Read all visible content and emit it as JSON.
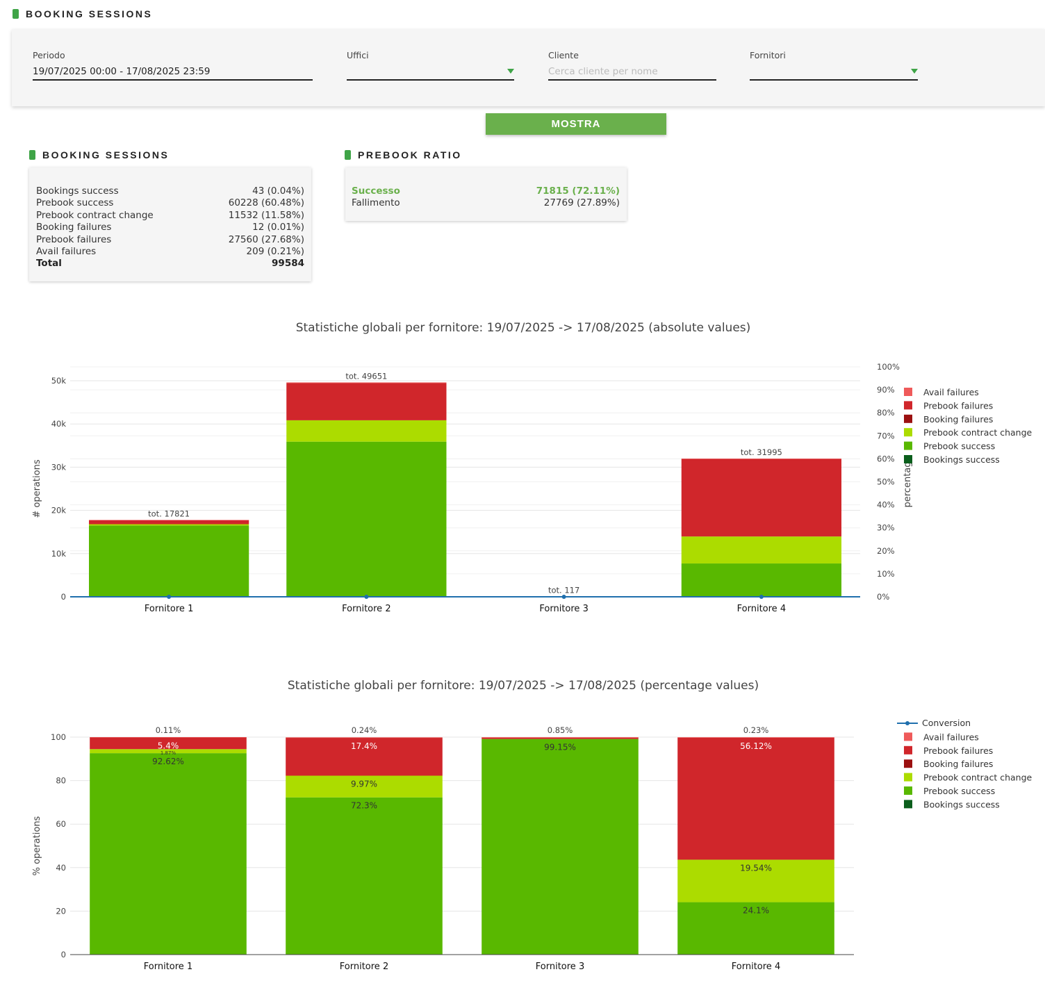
{
  "page": {
    "title": "BOOKING SESSIONS"
  },
  "filters": {
    "periodo_label": "Periodo",
    "periodo_value": "19/07/2025 00:00 - 17/08/2025 23:59",
    "uffici_label": "Uffici",
    "uffici_value": "",
    "cliente_label": "Cliente",
    "cliente_placeholder": "Cerca cliente per nome",
    "fornitori_label": "Fornitori",
    "fornitori_value": ""
  },
  "show_button": "MOSTRA",
  "booking_sessions": {
    "title": "BOOKING SESSIONS",
    "rows": [
      {
        "label": "Bookings success",
        "value": "43 (0.04%)"
      },
      {
        "label": "Prebook success",
        "value": "60228 (60.48%)"
      },
      {
        "label": "Prebook contract change",
        "value": "11532 (11.58%)"
      },
      {
        "label": "Booking failures",
        "value": "12 (0.01%)"
      },
      {
        "label": "Prebook failures",
        "value": "27560 (27.68%)"
      },
      {
        "label": "Avail failures",
        "value": "209 (0.21%)"
      }
    ],
    "total_label": "Total",
    "total_value": "99584"
  },
  "prebook_ratio": {
    "title": "PREBOOK RATIO",
    "success_label": "Successo",
    "success_value": "71815 (72.11%)",
    "failure_label": "Fallimento",
    "failure_value": "27769 (27.89%)"
  },
  "colors": {
    "accent": "#3fa447",
    "button": "#6ab04c",
    "avail_failures": "#ef5a5a",
    "prebook_failures": "#d0262b",
    "booking_failures": "#9b1010",
    "prebook_contract_change": "#acdc00",
    "prebook_success": "#59b800",
    "bookings_success": "#0b5e1c",
    "conversion": "#1f6fad"
  },
  "chart_data": [
    {
      "type": "bar",
      "stacked": true,
      "title": "Statistiche globali per fornitore: 19/07/2025 -> 17/08/2025 (absolute values)",
      "xlabel": "",
      "ylabel": "# operations",
      "y2label": "percentage",
      "ylim": [
        0,
        50000
      ],
      "y2lim": [
        0,
        100
      ],
      "yticks": [
        "0",
        "10k",
        "20k",
        "30k",
        "40k",
        "50k"
      ],
      "y2ticks": [
        "0%",
        "10%",
        "20%",
        "30%",
        "40%",
        "50%",
        "60%",
        "70%",
        "80%",
        "90%",
        "100%"
      ],
      "categories": [
        "Fornitore 1",
        "Fornitore 2",
        "Fornitore 3",
        "Fornitore 4"
      ],
      "totals_labels": [
        "tot. 17821",
        "tot. 49651",
        "tot. 117",
        "tot. 31995"
      ],
      "legend_position": "right",
      "series": [
        {
          "name": "Bookings success",
          "color_key": "bookings_success",
          "values": [
            0,
            0,
            0,
            0
          ]
        },
        {
          "name": "Prebook success",
          "color_key": "prebook_success",
          "values": [
            16500,
            35900,
            116,
            7710
          ]
        },
        {
          "name": "Prebook contract change",
          "color_key": "prebook_contract_change",
          "values": [
            300,
            4950,
            0,
            6250
          ]
        },
        {
          "name": "Booking failures",
          "color_key": "booking_failures",
          "values": [
            0,
            0,
            0,
            0
          ]
        },
        {
          "name": "Prebook failures",
          "color_key": "prebook_failures",
          "values": [
            960,
            8640,
            1,
            17950
          ]
        },
        {
          "name": "Avail failures",
          "color_key": "avail_failures",
          "values": [
            20,
            120,
            1,
            70
          ]
        }
      ],
      "conversion": {
        "name": "Conversion",
        "values": [
          0.11,
          0.24,
          0.85,
          0.23
        ]
      }
    },
    {
      "type": "bar",
      "stacked": true,
      "title": "Statistiche globali per fornitore: 19/07/2025 -> 17/08/2025 (percentage values)",
      "xlabel": "",
      "ylabel": "% operations",
      "ylim": [
        0,
        100
      ],
      "yticks": [
        "0",
        "20",
        "40",
        "60",
        "80",
        "100"
      ],
      "categories": [
        "Fornitore 1",
        "Fornitore 2",
        "Fornitore 3",
        "Fornitore 4"
      ],
      "top_labels": [
        "0.11%",
        "0.24%",
        "0.85%",
        "0.23%"
      ],
      "legend_position": "right",
      "series": [
        {
          "name": "Bookings success",
          "color_key": "bookings_success",
          "values": [
            0,
            0,
            0,
            0
          ],
          "labels": [
            "",
            "",
            "",
            ""
          ]
        },
        {
          "name": "Prebook success",
          "color_key": "prebook_success",
          "values": [
            92.62,
            72.3,
            99.15,
            24.1
          ],
          "labels": [
            "92.62%",
            "72.3%",
            "99.15%",
            "24.1%"
          ]
        },
        {
          "name": "Prebook contract change",
          "color_key": "prebook_contract_change",
          "values": [
            1.87,
            9.97,
            0,
            19.54
          ],
          "labels": [
            "1.87%",
            "9.97%",
            "",
            "19.54%"
          ]
        },
        {
          "name": "Booking failures",
          "color_key": "booking_failures",
          "values": [
            0,
            0,
            0,
            0
          ],
          "labels": [
            "",
            "",
            "",
            ""
          ]
        },
        {
          "name": "Prebook failures",
          "color_key": "prebook_failures",
          "values": [
            5.4,
            17.4,
            0.6,
            56.12
          ],
          "labels": [
            "5.4%",
            "17.4%",
            "",
            "56.12%"
          ]
        },
        {
          "name": "Avail failures",
          "color_key": "avail_failures",
          "values": [
            0.11,
            0.24,
            0.25,
            0.23
          ],
          "labels": [
            "",
            "",
            "",
            ""
          ]
        }
      ],
      "legend_extra": [
        {
          "name": "Conversion",
          "color_key": "conversion"
        }
      ]
    }
  ]
}
